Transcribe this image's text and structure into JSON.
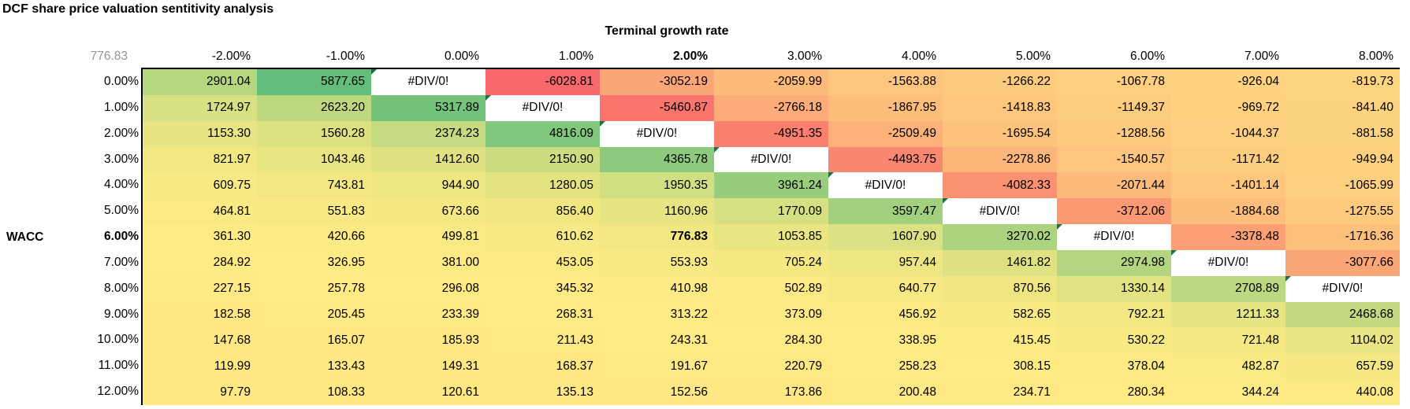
{
  "title": "DCF share price valuation sentitivity analysis",
  "table": {
    "axis_title_top": "Terminal growth rate",
    "axis_title_left": "WACC",
    "corner_value": "776.83",
    "error_text": "#DIV/0!",
    "bold_col_index": 4,
    "bold_row_index": 6,
    "colors": {
      "scale_min": "#F8696B",
      "scale_mid": "#FFEB84",
      "scale_max": "#63BE7B",
      "error_bg": "#FFFFFF",
      "error_indicator": "#1E7145",
      "corner_text": "#949494",
      "border": "#000000"
    }
  },
  "chart_data": {
    "type": "heatmap",
    "title": "DCF share price valuation sentitivity analysis",
    "x_label": "Terminal growth rate",
    "y_label": "WACC",
    "base_value": 776.83,
    "x_categories": [
      "-2.00%",
      "-1.00%",
      "0.00%",
      "1.00%",
      "2.00%",
      "3.00%",
      "4.00%",
      "5.00%",
      "6.00%",
      "7.00%",
      "8.00%"
    ],
    "y_categories": [
      "0.00%",
      "1.00%",
      "2.00%",
      "3.00%",
      "4.00%",
      "5.00%",
      "6.00%",
      "7.00%",
      "8.00%",
      "9.00%",
      "10.00%",
      "11.00%",
      "12.00%"
    ],
    "matrix": [
      [
        2901.04,
        5877.65,
        "#DIV/0!",
        -6028.81,
        -3052.19,
        -2059.99,
        -1563.88,
        -1266.22,
        -1067.78,
        -926.04,
        -819.73
      ],
      [
        1724.97,
        2623.2,
        5317.89,
        "#DIV/0!",
        -5460.87,
        -2766.18,
        -1867.95,
        -1418.83,
        -1149.37,
        -969.72,
        -841.4
      ],
      [
        1153.3,
        1560.28,
        2374.23,
        4816.09,
        "#DIV/0!",
        -4951.35,
        -2509.49,
        -1695.54,
        -1288.56,
        -1044.37,
        -881.58
      ],
      [
        821.97,
        1043.46,
        1412.6,
        2150.9,
        4365.78,
        "#DIV/0!",
        -4493.75,
        -2278.86,
        -1540.57,
        -1171.42,
        -949.94
      ],
      [
        609.75,
        743.81,
        944.9,
        1280.05,
        1950.35,
        3961.24,
        "#DIV/0!",
        -4082.33,
        -2071.44,
        -1401.14,
        -1065.99
      ],
      [
        464.81,
        551.83,
        673.66,
        856.4,
        1160.96,
        1770.09,
        3597.47,
        "#DIV/0!",
        -3712.06,
        -1884.68,
        -1275.55
      ],
      [
        361.3,
        420.66,
        499.81,
        610.62,
        776.83,
        1053.85,
        1607.9,
        3270.02,
        "#DIV/0!",
        -3378.48,
        -1716.36
      ],
      [
        284.92,
        326.95,
        381.0,
        453.05,
        553.93,
        705.24,
        957.44,
        1461.82,
        2974.98,
        "#DIV/0!",
        -3077.66
      ],
      [
        227.15,
        257.78,
        296.08,
        345.32,
        410.98,
        502.89,
        640.77,
        870.56,
        1330.14,
        2708.89,
        "#DIV/0!"
      ],
      [
        182.58,
        205.45,
        233.39,
        268.31,
        313.22,
        373.09,
        456.92,
        582.65,
        792.21,
        1211.33,
        2468.68
      ],
      [
        147.68,
        165.07,
        185.93,
        211.43,
        243.31,
        284.3,
        338.95,
        415.45,
        530.22,
        721.48,
        1104.02
      ],
      [
        119.99,
        133.43,
        149.31,
        168.37,
        191.67,
        220.79,
        258.23,
        308.15,
        378.04,
        482.87,
        657.59
      ],
      [
        97.79,
        108.33,
        120.61,
        135.13,
        152.56,
        173.86,
        200.48,
        234.71,
        280.34,
        344.24,
        440.08
      ]
    ]
  }
}
